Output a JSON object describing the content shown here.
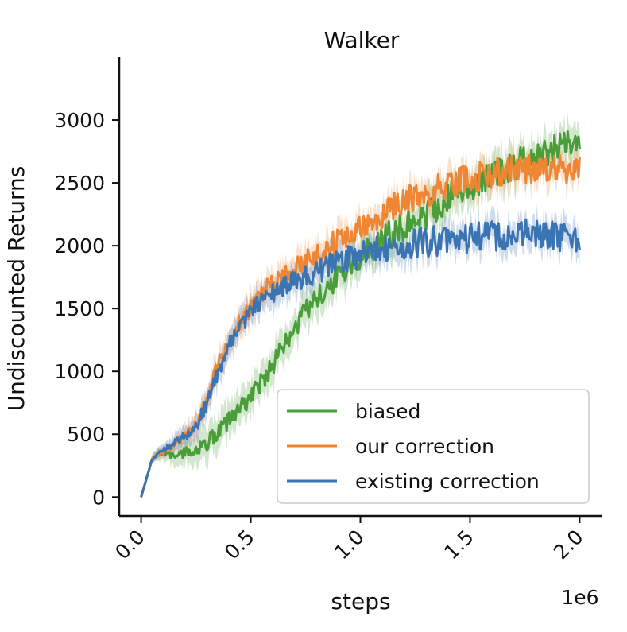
{
  "chart_data": {
    "type": "line",
    "title": "Walker",
    "xlabel": "steps",
    "ylabel": "Undiscounted Returns",
    "x_offset_label": "1e6",
    "xlim": [
      -0.1,
      2.1
    ],
    "ylim": [
      -150,
      3500
    ],
    "xticks": [
      0.0,
      0.5,
      1.0,
      1.5,
      2.0
    ],
    "xtick_labels": [
      "0.0",
      "0.5",
      "1.0",
      "1.5",
      "2.0"
    ],
    "yticks": [
      0,
      500,
      1000,
      1500,
      2000,
      2500,
      3000
    ],
    "ytick_labels": [
      "0",
      "500",
      "1000",
      "1500",
      "2000",
      "2500",
      "3000"
    ],
    "grid": false,
    "legend_position": "lower-right",
    "series": [
      {
        "name": "biased",
        "color": "#4a9e3a",
        "x": [
          0.0,
          0.02,
          0.05,
          0.08,
          0.1,
          0.15,
          0.2,
          0.25,
          0.3,
          0.35,
          0.4,
          0.45,
          0.5,
          0.55,
          0.6,
          0.65,
          0.7,
          0.75,
          0.8,
          0.85,
          0.9,
          0.95,
          1.0,
          1.05,
          1.1,
          1.15,
          1.2,
          1.25,
          1.3,
          1.35,
          1.4,
          1.45,
          1.5,
          1.55,
          1.6,
          1.65,
          1.7,
          1.75,
          1.8,
          1.85,
          1.9,
          1.95,
          2.0
        ],
        "y": [
          0,
          120,
          300,
          350,
          340,
          330,
          350,
          380,
          430,
          520,
          610,
          700,
          800,
          920,
          1050,
          1200,
          1330,
          1470,
          1570,
          1660,
          1750,
          1830,
          1900,
          1980,
          2050,
          2100,
          2150,
          2200,
          2250,
          2320,
          2380,
          2430,
          2480,
          2520,
          2570,
          2600,
          2640,
          2680,
          2700,
          2740,
          2780,
          2800,
          2780
        ],
        "band": 140
      },
      {
        "name": "our correction",
        "color": "#ef8634",
        "x": [
          0.0,
          0.02,
          0.05,
          0.08,
          0.1,
          0.15,
          0.2,
          0.25,
          0.3,
          0.35,
          0.4,
          0.45,
          0.5,
          0.55,
          0.6,
          0.65,
          0.7,
          0.75,
          0.8,
          0.85,
          0.9,
          0.95,
          1.0,
          1.05,
          1.1,
          1.15,
          1.2,
          1.25,
          1.3,
          1.35,
          1.4,
          1.45,
          1.5,
          1.55,
          1.6,
          1.65,
          1.7,
          1.75,
          1.8,
          1.85,
          1.9,
          1.95,
          2.0
        ],
        "y": [
          0,
          120,
          300,
          350,
          360,
          420,
          480,
          560,
          760,
          1050,
          1250,
          1400,
          1500,
          1620,
          1700,
          1760,
          1820,
          1870,
          1930,
          1990,
          2050,
          2100,
          2150,
          2190,
          2250,
          2320,
          2380,
          2400,
          2430,
          2450,
          2480,
          2520,
          2540,
          2560,
          2580,
          2600,
          2600,
          2610,
          2620,
          2630,
          2600,
          2620,
          2620
        ],
        "band": 110
      },
      {
        "name": "existing correction",
        "color": "#3a74b2",
        "x": [
          0.0,
          0.02,
          0.05,
          0.08,
          0.1,
          0.15,
          0.2,
          0.25,
          0.3,
          0.35,
          0.4,
          0.45,
          0.5,
          0.55,
          0.6,
          0.65,
          0.7,
          0.75,
          0.8,
          0.85,
          0.9,
          0.95,
          1.0,
          1.05,
          1.1,
          1.15,
          1.2,
          1.25,
          1.3,
          1.35,
          1.4,
          1.45,
          1.5,
          1.55,
          1.6,
          1.65,
          1.7,
          1.75,
          1.8,
          1.85,
          1.9,
          1.95,
          2.0
        ],
        "y": [
          0,
          120,
          300,
          350,
          370,
          430,
          490,
          560,
          750,
          1000,
          1200,
          1350,
          1480,
          1560,
          1630,
          1680,
          1710,
          1750,
          1790,
          1830,
          1870,
          1900,
          1930,
          1960,
          1980,
          2000,
          2010,
          2020,
          2030,
          2040,
          2050,
          2060,
          2060,
          2070,
          2080,
          2080,
          2090,
          2100,
          2100,
          2090,
          2080,
          2070,
          2020
        ],
        "band": 110
      }
    ]
  }
}
